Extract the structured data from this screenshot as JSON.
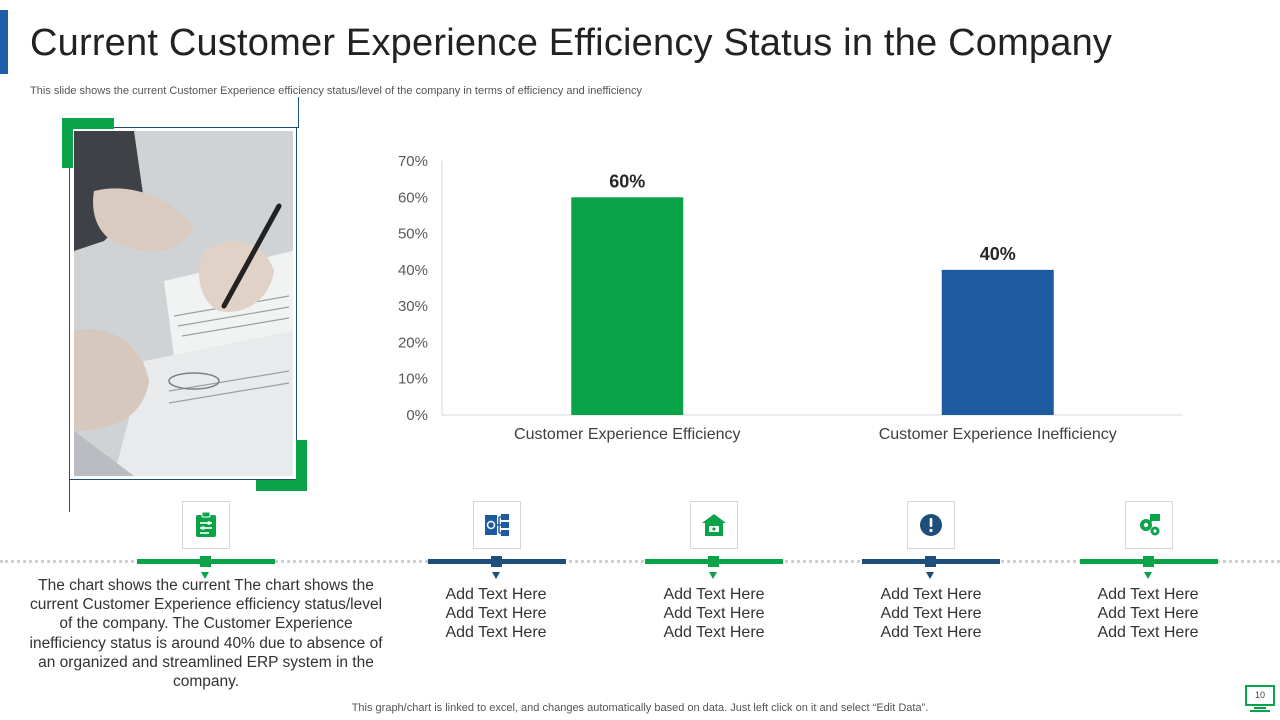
{
  "header": {
    "title": "Current Customer Experience Efficiency Status in the Company",
    "subtitle": "This slide shows the current Customer Experience efficiency status/level of the company in terms of efficiency and inefficiency"
  },
  "colors": {
    "green": "#0aa34a",
    "blue": "#1e5aa0",
    "dark_blue": "#1e4f7a"
  },
  "chart_data": {
    "type": "bar",
    "categories": [
      "Customer Experience Efficiency",
      "Customer Experience Inefficiency"
    ],
    "values": [
      60,
      40
    ],
    "data_labels": [
      "60%",
      "40%"
    ],
    "bar_colors": [
      "#0aa34a",
      "#1e5aa0"
    ],
    "yticks": [
      "0%",
      "10%",
      "20%",
      "30%",
      "40%",
      "50%",
      "60%",
      "70%"
    ],
    "ylim": [
      0,
      70
    ],
    "title": "",
    "xlabel": "",
    "ylabel": "",
    "grid": false
  },
  "timeline": {
    "description": "The chart shows the current The chart shows the current Customer Experience efficiency status/level of the company. The Customer Experience inefficiency status is around 40% due to absence of an organized and streamlined ERP system in the company.",
    "items": [
      {
        "icon": "clipboard-icon",
        "color": "green"
      },
      {
        "icon": "flowchart-icon",
        "color": "blue",
        "lines": [
          "Add Text Here",
          "Add Text Here",
          "Add Text Here"
        ]
      },
      {
        "icon": "house-icon",
        "color": "green",
        "lines": [
          "Add Text Here",
          "Add Text Here",
          "Add Text Here"
        ]
      },
      {
        "icon": "exclamation-icon",
        "color": "blue",
        "lines": [
          "Add Text Here",
          "Add Text Here",
          "Add Text Here"
        ]
      },
      {
        "icon": "gear-network-icon",
        "color": "green",
        "lines": [
          "Add Text Here",
          "Add Text Here",
          "Add Text Here"
        ]
      }
    ]
  },
  "footer": {
    "note": "This graph/chart is linked to excel,  and changes automatically based on data. Just left click on it and select “Edit Data”.",
    "page_number": "10"
  }
}
